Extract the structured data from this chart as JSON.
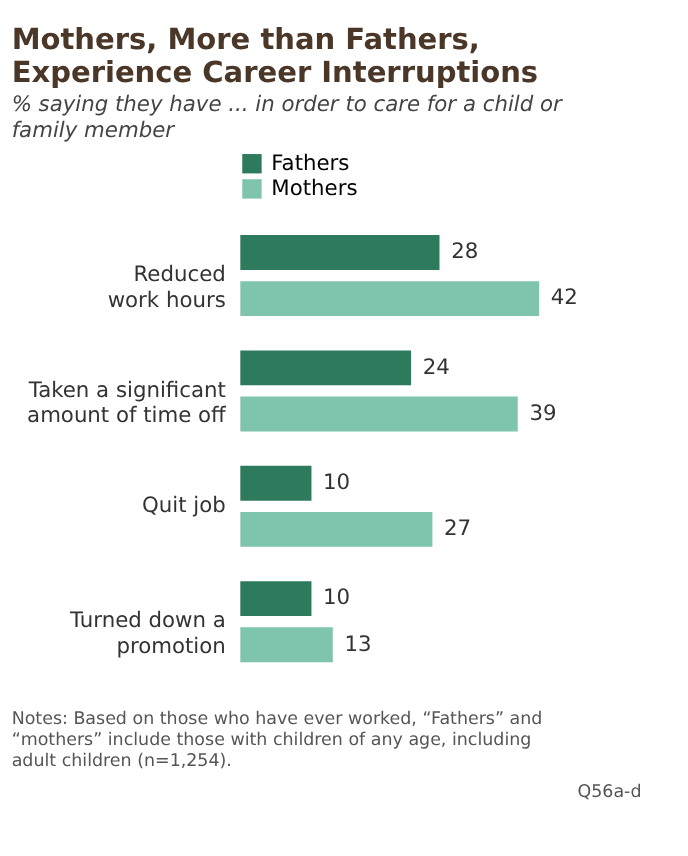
{
  "chart_data": {
    "type": "bar",
    "orientation": "horizontal",
    "title": "Mothers, More than Fathers, Experience Career Interruptions",
    "subtitle": "% saying they have ... in order to care for a child or family member",
    "categories": [
      "Reduced\nwork hours",
      "Taken a significant\namount of time off",
      "Quit job",
      "Turned down a\npromotion"
    ],
    "series": [
      {
        "name": "Fathers",
        "color": "#2e7a5c",
        "values": [
          28,
          24,
          10,
          10
        ]
      },
      {
        "name": "Mothers",
        "color": "#7fc4ad",
        "values": [
          42,
          39,
          27,
          13
        ]
      }
    ],
    "data_labels": true,
    "legend": "top",
    "grid": false,
    "annotations": [
      "Notes: Based on those who have ever worked, “Fathers” and “mothers” include those with children of any age, including adult children (n=1,254).",
      "Q56a-d"
    ]
  }
}
